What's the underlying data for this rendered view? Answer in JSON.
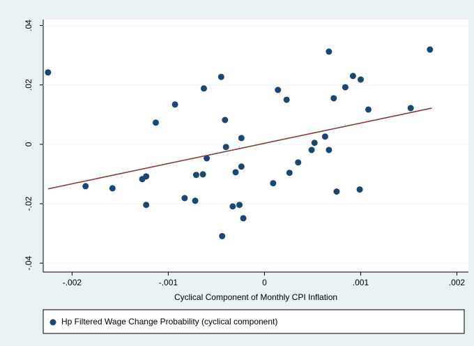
{
  "chart_data": {
    "type": "scatter",
    "x_label": "Cyclical Component of Monthly CPI Inflation",
    "xlim": [
      -0.0023,
      0.00212
    ],
    "ylim": [
      -0.043,
      0.042
    ],
    "xticks": [
      {
        "value": -0.002,
        "label": "-.002"
      },
      {
        "value": -0.001,
        "label": "-.001"
      },
      0,
      {
        "value": 0.001,
        "label": ".001"
      },
      {
        "value": 0.002,
        "label": ".002"
      }
    ],
    "yticks": [
      {
        "value": -0.04,
        "label": "-.04"
      },
      {
        "value": -0.02,
        "label": "-.02"
      },
      0,
      {
        "value": 0.02,
        "label": ".02"
      },
      {
        "value": 0.04,
        "label": ".04"
      }
    ],
    "grid": true,
    "series": [
      {
        "name": "Hp Filtered Wage Change Probability (cyclical component)",
        "color": "#1a476f",
        "x": [
          -0.00225,
          -0.00186,
          -0.00158,
          -0.00127,
          -0.00123,
          -0.00123,
          -0.00113,
          -0.00093,
          -0.00083,
          -0.00072,
          -0.00071,
          -0.00064,
          -0.00063,
          -0.0006,
          -0.00045,
          -0.00044,
          -0.00041,
          -0.0004,
          -0.00033,
          -0.0003,
          -0.00026,
          -0.00024,
          -0.00024,
          -0.00022,
          9e-05,
          0.00014,
          0.00023,
          0.00026,
          0.00035,
          0.00049,
          0.00052,
          0.00063,
          0.00067,
          0.00067,
          0.00072,
          0.00075,
          0.00084,
          0.00092,
          0.001,
          0.00099,
          0.00108,
          0.00152,
          0.00172
        ],
        "values": [
          0.0242,
          -0.0141,
          -0.0148,
          -0.0117,
          -0.0108,
          -0.0204,
          0.0073,
          0.0134,
          -0.0181,
          -0.019,
          -0.0103,
          -0.0101,
          0.0188,
          -0.0047,
          0.0227,
          -0.0309,
          0.0082,
          -0.0009,
          -0.0209,
          -0.0094,
          -0.0204,
          -0.0075,
          0.0021,
          -0.0249,
          -0.0131,
          0.0183,
          0.015,
          -0.0096,
          -0.0061,
          -0.0019,
          0.0005,
          0.0026,
          0.0312,
          -0.0019,
          0.0155,
          -0.0159,
          0.0192,
          0.023,
          0.0218,
          -0.0152,
          0.0117,
          0.0122,
          0.0319
        ]
      }
    ],
    "fit_line": {
      "color": "#90353b",
      "x": [
        -0.00225,
        0.00174
      ],
      "values": [
        -0.015,
        0.0122
      ]
    }
  }
}
